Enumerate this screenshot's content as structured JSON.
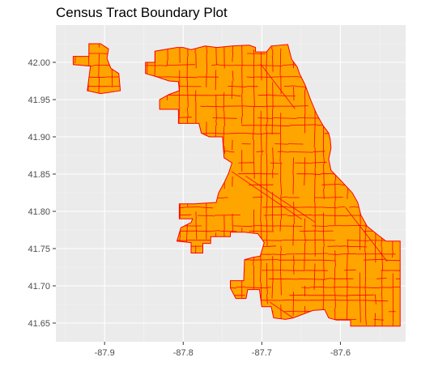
{
  "title": "Census Tract Boundary Plot",
  "colors": {
    "panel_background": "#EBEBEB",
    "grid_major": "#FFFFFF",
    "grid_minor": "#F4F4F4",
    "tract_fill": "#FFA500",
    "tract_border": "#FF0000",
    "axis_text": "#4D4D4D",
    "tick": "#333333"
  },
  "chart_data": {
    "type": "map",
    "title": "Census Tract Boundary Plot",
    "xlabel": "",
    "ylabel": "",
    "xlim": [
      -87.962,
      -87.517
    ],
    "ylim": [
      41.625,
      42.05
    ],
    "x_ticks": [
      -87.9,
      -87.8,
      -87.7,
      -87.6
    ],
    "x_tick_labels": [
      "-87.9",
      "-87.8",
      "-87.7",
      "-87.6"
    ],
    "y_ticks": [
      41.65,
      41.7,
      41.75,
      41.8,
      41.85,
      41.9,
      41.95,
      42.0
    ],
    "y_tick_labels": [
      "41.65",
      "41.70",
      "41.75",
      "41.80",
      "41.85",
      "41.90",
      "41.95",
      "42.00"
    ],
    "grid": true,
    "legend": "none",
    "layers": [
      {
        "name": "",
        "fill": "#FFA500",
        "border": "#FF0000",
        "polygons": [
          [
            [
              -87.94,
              42.008
            ],
            [
              -87.92,
              42.008
            ],
            [
              -87.92,
              42.025
            ],
            [
              -87.905,
              42.025
            ],
            [
              -87.895,
              42.018
            ],
            [
              -87.897,
              42.005
            ],
            [
              -87.892,
              41.992
            ],
            [
              -87.882,
              41.985
            ],
            [
              -87.88,
              41.962
            ],
            [
              -87.905,
              41.958
            ],
            [
              -87.922,
              41.962
            ],
            [
              -87.918,
              41.995
            ],
            [
              -87.94,
              41.997
            ]
          ],
          [
            [
              -87.848,
              42.0
            ],
            [
              -87.836,
              42.0
            ],
            [
              -87.836,
              42.015
            ],
            [
              -87.808,
              42.02
            ],
            [
              -87.8,
              42.02
            ],
            [
              -87.79,
              42.017
            ],
            [
              -87.772,
              42.022
            ],
            [
              -87.757,
              42.02
            ],
            [
              -87.738,
              42.022
            ],
            [
              -87.716,
              42.023
            ],
            [
              -87.708,
              42.02
            ],
            [
              -87.708,
              42.014
            ],
            [
              -87.694,
              42.014
            ],
            [
              -87.688,
              42.022
            ],
            [
              -87.667,
              42.024
            ],
            [
              -87.662,
              42.004
            ],
            [
              -87.655,
              41.994
            ],
            [
              -87.652,
              41.985
            ],
            [
              -87.645,
              41.97
            ],
            [
              -87.638,
              41.95
            ],
            [
              -87.63,
              41.93
            ],
            [
              -87.622,
              41.915
            ],
            [
              -87.615,
              41.905
            ],
            [
              -87.613,
              41.897
            ],
            [
              -87.612,
              41.885
            ],
            [
              -87.615,
              41.87
            ],
            [
              -87.612,
              41.855
            ],
            [
              -87.6,
              41.842
            ],
            [
              -87.585,
              41.825
            ],
            [
              -87.578,
              41.812
            ],
            [
              -87.574,
              41.795
            ],
            [
              -87.566,
              41.78
            ],
            [
              -87.552,
              41.768
            ],
            [
              -87.542,
              41.76
            ],
            [
              -87.524,
              41.76
            ],
            [
              -87.524,
              41.646
            ],
            [
              -87.587,
              41.646
            ],
            [
              -87.587,
              41.654
            ],
            [
              -87.605,
              41.654
            ],
            [
              -87.615,
              41.657
            ],
            [
              -87.62,
              41.668
            ],
            [
              -87.635,
              41.667
            ],
            [
              -87.66,
              41.657
            ],
            [
              -87.67,
              41.655
            ],
            [
              -87.685,
              41.657
            ],
            [
              -87.688,
              41.672
            ],
            [
              -87.7,
              41.672
            ],
            [
              -87.703,
              41.695
            ],
            [
              -87.718,
              41.695
            ],
            [
              -87.72,
              41.683
            ],
            [
              -87.733,
              41.683
            ],
            [
              -87.74,
              41.697
            ],
            [
              -87.74,
              41.707
            ],
            [
              -87.723,
              41.707
            ],
            [
              -87.722,
              41.735
            ],
            [
              -87.712,
              41.738
            ],
            [
              -87.702,
              41.74
            ],
            [
              -87.697,
              41.758
            ],
            [
              -87.705,
              41.77
            ],
            [
              -87.722,
              41.772
            ],
            [
              -87.74,
              41.772
            ],
            [
              -87.74,
              41.766
            ],
            [
              -87.765,
              41.766
            ],
            [
              -87.765,
              41.757
            ],
            [
              -87.775,
              41.757
            ],
            [
              -87.775,
              41.744
            ],
            [
              -87.79,
              41.744
            ],
            [
              -87.79,
              41.758
            ],
            [
              -87.808,
              41.76
            ],
            [
              -87.803,
              41.778
            ],
            [
              -87.79,
              41.785
            ],
            [
              -87.788,
              41.79
            ],
            [
              -87.805,
              41.79
            ],
            [
              -87.805,
              41.81
            ],
            [
              -87.786,
              41.81
            ],
            [
              -87.758,
              41.812
            ],
            [
              -87.755,
              41.825
            ],
            [
              -87.748,
              41.838
            ],
            [
              -87.742,
              41.852
            ],
            [
              -87.738,
              41.865
            ],
            [
              -87.748,
              41.872
            ],
            [
              -87.75,
              41.9
            ],
            [
              -87.767,
              41.9
            ],
            [
              -87.777,
              41.905
            ],
            [
              -87.78,
              41.918
            ],
            [
              -87.806,
              41.918
            ],
            [
              -87.806,
              41.937
            ],
            [
              -87.83,
              41.937
            ],
            [
              -87.83,
              41.95
            ],
            [
              -87.818,
              41.957
            ],
            [
              -87.805,
              41.962
            ],
            [
              -87.806,
              41.974
            ],
            [
              -87.818,
              41.975
            ],
            [
              -87.832,
              41.98
            ],
            [
              -87.848,
              41.985
            ]
          ]
        ]
      }
    ]
  }
}
